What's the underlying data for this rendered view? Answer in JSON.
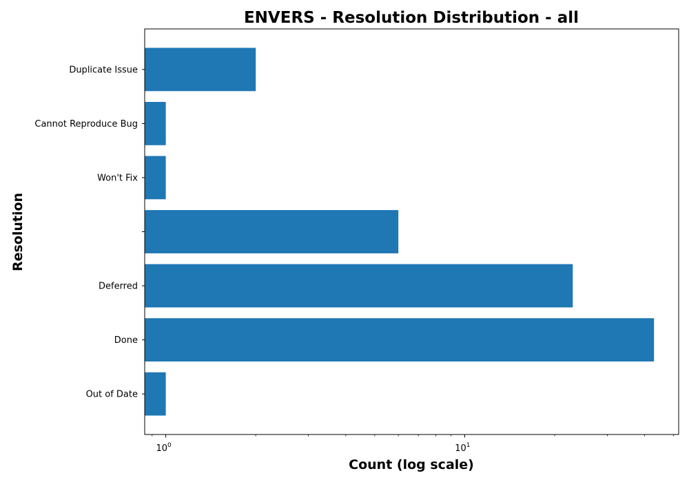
{
  "chart_data": {
    "type": "bar",
    "orientation": "horizontal",
    "title": "ENVERS - Resolution Distribution - all",
    "xlabel": "Count (log scale)",
    "ylabel": "Resolution",
    "x_scale": "log",
    "xlim": [
      0.85,
      52
    ],
    "x_ticks": [
      {
        "value": 1,
        "label_base": "10",
        "label_exp": "0"
      },
      {
        "value": 10,
        "label_base": "10",
        "label_exp": "1"
      }
    ],
    "categories": [
      "Duplicate Issue",
      "Cannot Reproduce Bug",
      "Won't Fix",
      "",
      "Deferred",
      "Done",
      "Out of Date"
    ],
    "values": [
      2,
      1,
      1,
      6,
      23,
      43,
      1
    ],
    "bar_color": "#1f77b4",
    "grid": false,
    "legend": "none"
  }
}
